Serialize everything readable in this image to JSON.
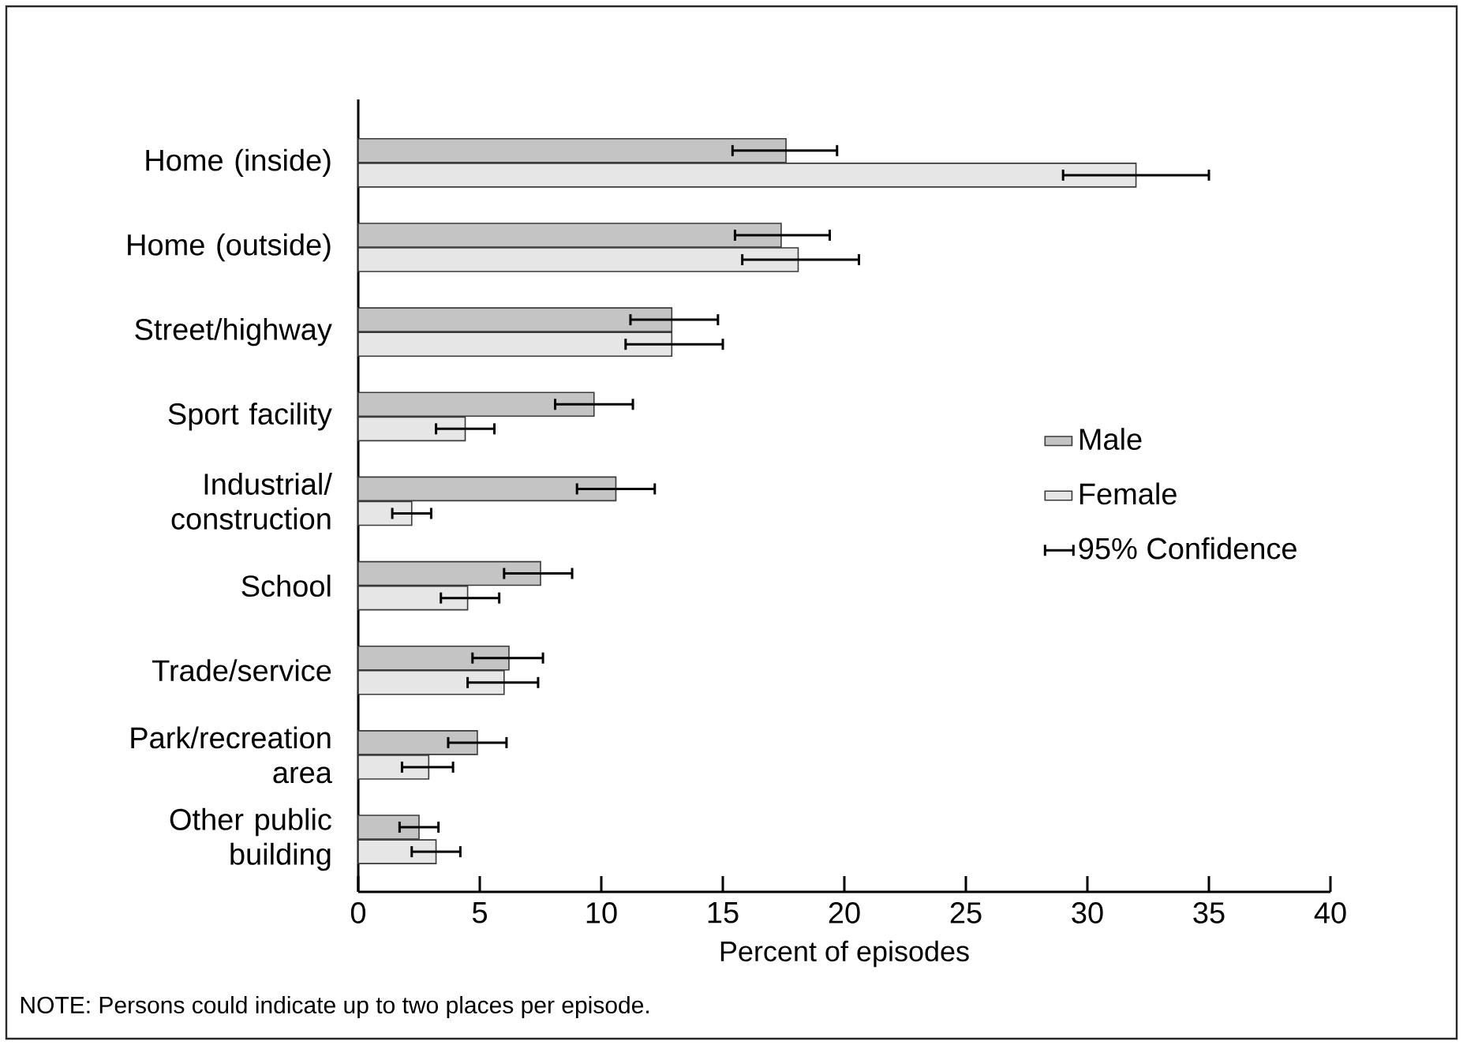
{
  "chart_data": {
    "type": "bar",
    "orientation": "horizontal",
    "categories": [
      "Home (inside)",
      "Home (outside)",
      "Street/highway",
      "Sport facility",
      "Industrial/ construction",
      "School",
      "Trade/service",
      "Park/recreation area",
      "Other public building"
    ],
    "series": [
      {
        "name": "Male",
        "color": "#c4c4c4",
        "values": [
          17.6,
          17.4,
          12.9,
          9.7,
          10.6,
          7.5,
          6.2,
          4.9,
          2.5
        ],
        "errors": [
          [
            15.4,
            19.7
          ],
          [
            15.5,
            19.4
          ],
          [
            11.2,
            14.8
          ],
          [
            8.1,
            11.3
          ],
          [
            9.0,
            12.2
          ],
          [
            6.0,
            8.8
          ],
          [
            4.7,
            7.6
          ],
          [
            3.7,
            6.1
          ],
          [
            1.7,
            3.3
          ]
        ]
      },
      {
        "name": "Female",
        "color": "#e6e6e6",
        "values": [
          32.0,
          18.1,
          12.9,
          4.4,
          2.2,
          4.5,
          6.0,
          2.9,
          3.2
        ],
        "errors": [
          [
            29.0,
            35.0
          ],
          [
            15.8,
            20.6
          ],
          [
            11.0,
            15.0
          ],
          [
            3.2,
            5.6
          ],
          [
            1.4,
            3.0
          ],
          [
            3.4,
            5.8
          ],
          [
            4.5,
            7.4
          ],
          [
            1.8,
            3.9
          ],
          [
            2.2,
            4.2
          ]
        ]
      }
    ],
    "xlabel": "Percent of episodes",
    "xlim": [
      0,
      40
    ],
    "xticks": [
      0,
      5,
      10,
      15,
      20,
      25,
      30,
      35,
      40
    ],
    "legend": "right",
    "annotations": [
      "95% Confidence",
      "NOTE:  Persons could indicate up to two places per episode."
    ]
  }
}
